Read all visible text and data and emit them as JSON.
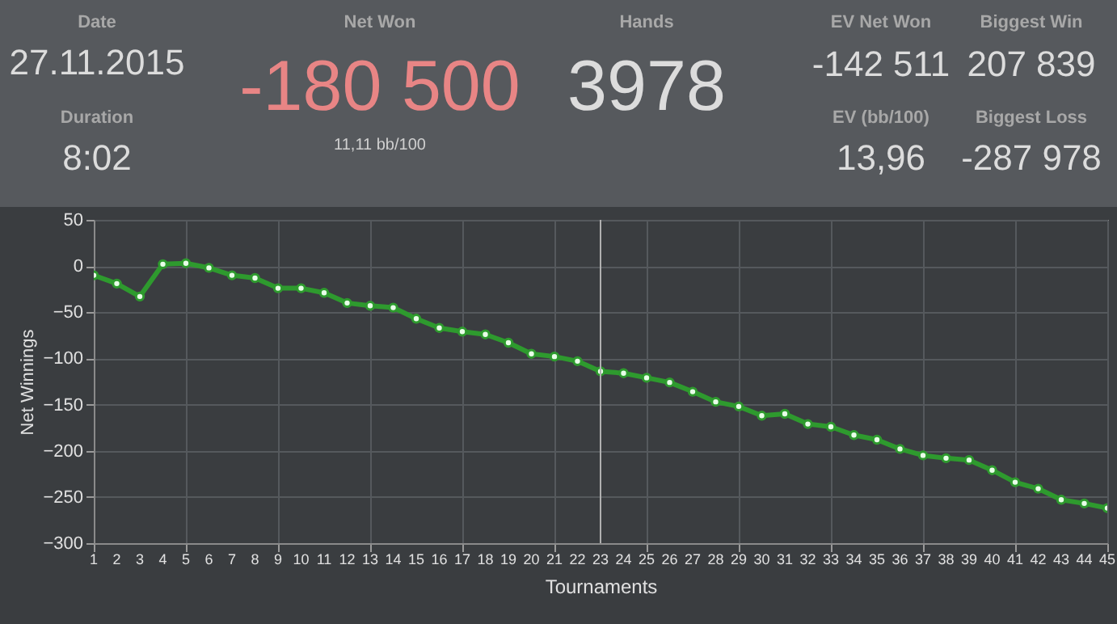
{
  "chart_data": {
    "type": "line",
    "xlabel": "Tournaments",
    "ylabel": "Net Winnings",
    "annotations": [
      "Date",
      "27.11.2015",
      "Duration",
      "8:02",
      "Net Won",
      "-180 500",
      "11,11 bb/100",
      "Hands",
      "3978",
      "EV Net Won",
      "-142 511",
      "Biggest Win",
      "207 839",
      "EV (bb/100)",
      "13,96",
      "Biggest Loss",
      "-287 978"
    ],
    "x": [
      1,
      2,
      3,
      4,
      5,
      6,
      7,
      8,
      9,
      10,
      11,
      12,
      13,
      14,
      15,
      16,
      17,
      18,
      19,
      20,
      21,
      22,
      23,
      24,
      25,
      26,
      27,
      28,
      29,
      30,
      31,
      32,
      33,
      34,
      35,
      36,
      37,
      38,
      39,
      40,
      41,
      42,
      43,
      44,
      45
    ],
    "series": [
      {
        "color": "#2e9a2e",
        "values": [
          -10,
          -19,
          -33,
          2,
          3,
          -2,
          -10,
          -13,
          -24,
          -24,
          -29,
          -40,
          -43,
          -45,
          -57,
          -67,
          -71,
          -74,
          -83,
          -95,
          -98,
          -103,
          -114,
          -116,
          -121,
          -126,
          -136,
          -147,
          -152,
          -162,
          -160,
          -171,
          -174,
          -183,
          -188,
          -198,
          -205,
          -208,
          -210,
          -221,
          -234,
          -241,
          -253,
          -257,
          -262
        ]
      }
    ],
    "xlim": [
      1,
      45
    ],
    "xticks": [
      1,
      2,
      3,
      4,
      5,
      6,
      7,
      8,
      9,
      10,
      11,
      12,
      13,
      14,
      15,
      16,
      17,
      18,
      19,
      20,
      21,
      22,
      23,
      24,
      25,
      26,
      27,
      28,
      29,
      30,
      31,
      32,
      33,
      34,
      35,
      36,
      37,
      38,
      39,
      40,
      41,
      42,
      43,
      44,
      45
    ],
    "ylim": [
      -300,
      50
    ],
    "yticks": [
      -300,
      -250,
      -200,
      -150,
      -100,
      -50,
      0,
      50
    ],
    "ref_lines": [
      {
        "axis": "x",
        "value": 23,
        "color": "#b0b0b0"
      }
    ],
    "grid": true,
    "marker": "circle",
    "line_style": "solid"
  }
}
